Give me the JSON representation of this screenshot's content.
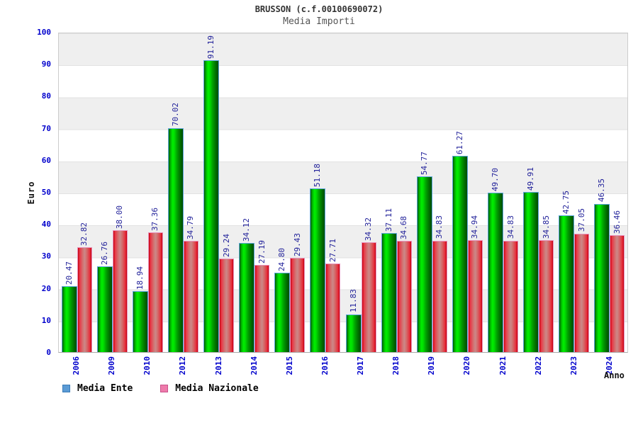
{
  "header": {
    "title": "BRUSSON (c.f.00100690072)",
    "subtitle": "Media Importi"
  },
  "axes": {
    "y_label": "Euro",
    "x_label": "Anno",
    "y_ticks": [
      0,
      10,
      20,
      30,
      40,
      50,
      60,
      70,
      80,
      90,
      100
    ]
  },
  "legend": {
    "items": [
      {
        "label": "Media Ente",
        "swatch_color": "#5b9bd5"
      },
      {
        "label": "Media Nazionale",
        "swatch_color": "#ee7bab"
      }
    ],
    "position": "bottom-left"
  },
  "chart_data": {
    "type": "bar",
    "title": "BRUSSON (c.f.00100690072)",
    "subtitle": "Media Importi",
    "xlabel": "Anno",
    "ylabel": "Euro",
    "ylim": [
      0,
      100
    ],
    "grid": "horizontal bands every 10 units, alternating gray/white",
    "legend_position": "bottom-left",
    "categories": [
      "2006",
      "2009",
      "2010",
      "2012",
      "2013",
      "2014",
      "2015",
      "2016",
      "2017",
      "2018",
      "2019",
      "2020",
      "2021",
      "2022",
      "2023",
      "2024"
    ],
    "series": [
      {
        "name": "Media Ente",
        "bar_style": "green gradient, light-blue border",
        "values": [
          20.47,
          26.76,
          18.94,
          70.02,
          91.19,
          34.12,
          24.8,
          51.18,
          11.83,
          37.11,
          54.77,
          61.27,
          49.7,
          49.91,
          42.75,
          46.35
        ]
      },
      {
        "name": "Media Nazionale",
        "bar_style": "red gradient, pink border",
        "values": [
          32.82,
          38.0,
          37.36,
          34.79,
          29.24,
          27.19,
          29.43,
          27.71,
          34.32,
          34.68,
          34.83,
          34.94,
          34.83,
          34.85,
          37.05,
          36.46
        ]
      }
    ]
  },
  "colors": {
    "axis_tick_label": "#0000cc",
    "value_label": "#22229a",
    "band_gray": "#efefef",
    "plot_border": "#cccccc",
    "green_bar_border": "#5da7dc",
    "red_bar_border": "#e893bc"
  }
}
